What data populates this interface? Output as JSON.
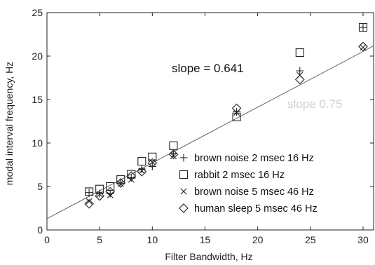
{
  "chart_data": {
    "type": "scatter",
    "xlabel": "Filter Bandwidth, Hz",
    "ylabel": "modal interval frequency, Hz",
    "xlim": [
      0,
      31
    ],
    "ylim": [
      0,
      25
    ],
    "xticks": [
      0,
      5,
      10,
      15,
      20,
      25,
      30
    ],
    "yticks": [
      0,
      5,
      10,
      15,
      20,
      25
    ],
    "grid": false,
    "legend_position": "bottom-right",
    "series": [
      {
        "name": "brown noise 2 msec 16 Hz",
        "marker": "plus",
        "x": [
          4,
          5,
          6,
          7,
          8,
          9,
          10,
          12,
          18,
          24,
          30
        ],
        "y": [
          4.3,
          4.2,
          4.2,
          5.5,
          6.0,
          7.0,
          7.3,
          8.8,
          13.6,
          18.3,
          23.3
        ]
      },
      {
        "name": "rabbit 2 msec  16 Hz",
        "marker": "square",
        "x": [
          4,
          5,
          6,
          7,
          8,
          9,
          10,
          12,
          18,
          24,
          30
        ],
        "y": [
          4.4,
          4.7,
          5.0,
          5.8,
          6.4,
          7.9,
          8.4,
          9.7,
          13.0,
          20.4,
          23.3
        ]
      },
      {
        "name": "brown noise 5 msec 46 Hz",
        "marker": "x",
        "x": [
          4,
          5,
          6,
          7,
          8,
          9,
          10,
          12,
          18,
          24,
          30
        ],
        "y": [
          3.3,
          4.1,
          4.0,
          5.3,
          5.8,
          6.8,
          7.8,
          8.5,
          13.5,
          17.8,
          21.0
        ]
      },
      {
        "name": "human sleep 5 msec 46 Hz",
        "marker": "diamond",
        "x": [
          4,
          5,
          6,
          7,
          8,
          9,
          10,
          12,
          18,
          24,
          30
        ],
        "y": [
          3.0,
          3.9,
          4.4,
          5.4,
          6.2,
          6.7,
          7.7,
          8.7,
          14.0,
          17.3,
          21.1
        ]
      }
    ],
    "fit_line": {
      "slope": 0.641,
      "intercept": 1.3,
      "x_range": [
        0,
        31
      ],
      "color": "#666666"
    },
    "annotations": [
      {
        "text": "slope = 0.641",
        "color": "#111111"
      },
      {
        "text": "slope 0.75",
        "color": "#cfcfcf"
      }
    ]
  }
}
